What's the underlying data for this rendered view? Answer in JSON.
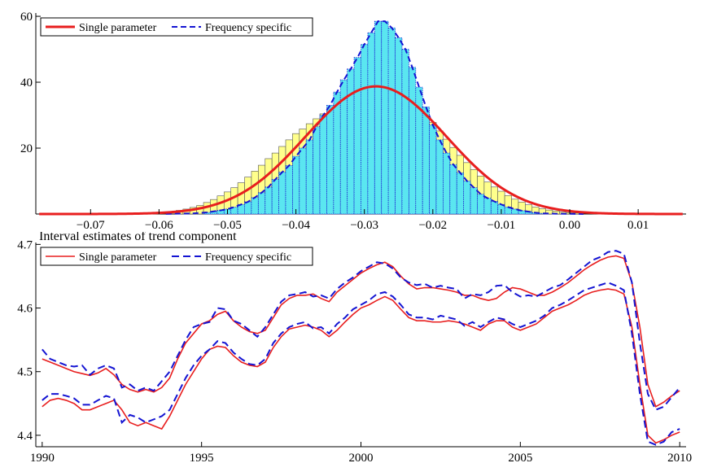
{
  "chart_data": [
    {
      "type": "histogram",
      "title": "",
      "xlabel": "",
      "ylabel": "",
      "xlim": [
        -0.078,
        0.017
      ],
      "ylim": [
        0,
        61
      ],
      "grid": false,
      "legend_placement": "top-left",
      "x_ticks": [
        -0.07,
        -0.06,
        -0.05,
        -0.04,
        -0.03,
        -0.02,
        -0.01,
        0.0,
        0.01
      ],
      "x_tick_labels": [
        "−0.07",
        "−0.06",
        "−0.05",
        "−0.04",
        "−0.03",
        "−0.02",
        "−0.01",
        "0.00",
        "0.01"
      ],
      "y_ticks": [
        20,
        40,
        60
      ],
      "y_tick_labels": [
        "20",
        "40",
        "60"
      ],
      "bin_width": 0.001,
      "series": [
        {
          "name": "Single parameter",
          "color": "#e81e1e",
          "line_style": "solid",
          "bar_color": "#ffff8c",
          "density_mean": -0.0283,
          "density_sd": 0.0103,
          "bins": {
            "x": [
              -0.057,
              -0.056,
              -0.055,
              -0.054,
              -0.053,
              -0.052,
              -0.051,
              -0.05,
              -0.049,
              -0.048,
              -0.047,
              -0.046,
              -0.045,
              -0.044,
              -0.043,
              -0.042,
              -0.041,
              -0.04,
              -0.039,
              -0.038,
              -0.037,
              -0.036,
              -0.035,
              -0.034,
              -0.033,
              -0.032,
              -0.031,
              -0.03,
              -0.029,
              -0.028,
              -0.027,
              -0.026,
              -0.025,
              -0.024,
              -0.023,
              -0.022,
              -0.021,
              -0.02,
              -0.019,
              -0.018,
              -0.017,
              -0.016,
              -0.015,
              -0.014,
              -0.013,
              -0.012,
              -0.011,
              -0.01,
              -0.009,
              -0.008,
              -0.007,
              -0.006,
              -0.005,
              -0.004,
              -0.003,
              -0.002,
              -0.001,
              0.0,
              0.001
            ],
            "values": [
              1.1,
              1.5,
              2.0,
              2.6,
              3.5,
              4.4,
              5.5,
              6.7,
              8.0,
              9.5,
              11.2,
              13.0,
              14.8,
              16.8,
              18.5,
              20.5,
              22.5,
              24.4,
              25.8,
              27.4,
              28.9,
              30.4,
              32.0,
              33.4,
              34.7,
              35.9,
              36.9,
              37.8,
              38.5,
              38.9,
              38.7,
              38.0,
              37.0,
              35.8,
              34.3,
              32.4,
              30.2,
              27.8,
              25.2,
              22.7,
              20.2,
              17.8,
              15.6,
              13.5,
              11.5,
              9.7,
              8.2,
              6.9,
              5.6,
              4.5,
              3.6,
              2.8,
              2.1,
              1.6,
              1.2,
              0.9,
              0.6,
              0.4,
              0.3
            ]
          }
        },
        {
          "name": "Frequency specific",
          "color": "#1414d2",
          "line_style": "dashed",
          "bar_color": "#5ae6f0",
          "bins": {
            "x": [
              -0.053,
              -0.052,
              -0.051,
              -0.05,
              -0.049,
              -0.048,
              -0.047,
              -0.046,
              -0.045,
              -0.044,
              -0.043,
              -0.042,
              -0.041,
              -0.04,
              -0.039,
              -0.038,
              -0.037,
              -0.036,
              -0.035,
              -0.034,
              -0.033,
              -0.032,
              -0.031,
              -0.03,
              -0.029,
              -0.028,
              -0.027,
              -0.026,
              -0.025,
              -0.024,
              -0.023,
              -0.022,
              -0.021,
              -0.02,
              -0.019,
              -0.018,
              -0.017,
              -0.016,
              -0.015,
              -0.014,
              -0.013,
              -0.012,
              -0.011,
              -0.01,
              -0.009,
              -0.008,
              -0.007,
              -0.006,
              -0.005,
              -0.004
            ],
            "values": [
              0.5,
              0.8,
              1.1,
              1.5,
              2.1,
              2.9,
              3.7,
              5.0,
              6.5,
              8.2,
              10.5,
              12.7,
              14.7,
              17.5,
              20.0,
              22.5,
              26.5,
              30.0,
              33.0,
              37.0,
              40.7,
              44.0,
              47.5,
              51.5,
              55.0,
              58.5,
              58.5,
              56.5,
              53.5,
              50.0,
              44.5,
              38.5,
              32.5,
              27.0,
              22.5,
              18.5,
              15.0,
              12.5,
              10.0,
              8.0,
              6.0,
              4.8,
              3.8,
              2.9,
              2.1,
              1.5,
              1.0,
              0.7,
              0.4,
              0.2
            ]
          }
        }
      ]
    },
    {
      "type": "line",
      "title": "Interval estimates of trend component",
      "xlabel": "",
      "ylabel": "",
      "xlim": [
        1989.8,
        2010.2
      ],
      "ylim": [
        4.382,
        4.703
      ],
      "grid": false,
      "legend_placement": "top-left",
      "x_ticks": [
        1990,
        1995,
        2000,
        2005,
        2010
      ],
      "x_tick_labels": [
        "1990",
        "1995",
        "2000",
        "2005",
        "2010"
      ],
      "y_ticks": [
        4.4,
        4.5,
        4.6,
        4.7
      ],
      "y_tick_labels": [
        "4.4",
        "4.5",
        "4.6",
        "4.7"
      ],
      "x": [
        1990.0,
        1990.25,
        1990.5,
        1990.75,
        1991.0,
        1991.25,
        1991.5,
        1991.75,
        1992.0,
        1992.25,
        1992.5,
        1992.75,
        1993.0,
        1993.25,
        1993.5,
        1993.75,
        1994.0,
        1994.25,
        1994.5,
        1994.75,
        1995.0,
        1995.25,
        1995.5,
        1995.75,
        1996.0,
        1996.25,
        1996.5,
        1996.75,
        1997.0,
        1997.25,
        1997.5,
        1997.75,
        1998.0,
        1998.25,
        1998.5,
        1998.75,
        1999.0,
        1999.25,
        1999.5,
        1999.75,
        2000.0,
        2000.25,
        2000.5,
        2000.75,
        2001.0,
        2001.25,
        2001.5,
        2001.75,
        2002.0,
        2002.25,
        2002.5,
        2002.75,
        2003.0,
        2003.25,
        2003.5,
        2003.75,
        2004.0,
        2004.25,
        2004.5,
        2004.75,
        2005.0,
        2005.25,
        2005.5,
        2005.75,
        2006.0,
        2006.25,
        2006.5,
        2006.75,
        2007.0,
        2007.25,
        2007.5,
        2007.75,
        2008.0,
        2008.25,
        2008.5,
        2008.75,
        2009.0,
        2009.25,
        2009.5,
        2009.75,
        2010.0
      ],
      "series": [
        {
          "name": "Single parameter",
          "color": "#e81e1e",
          "line_style": "solid",
          "legend_entry": true,
          "values": [
            4.52,
            4.515,
            4.51,
            4.505,
            4.5,
            4.497,
            4.494,
            4.498,
            4.505,
            4.495,
            4.48,
            4.472,
            4.468,
            4.472,
            4.468,
            4.475,
            4.49,
            4.52,
            4.545,
            4.56,
            4.575,
            4.58,
            4.59,
            4.595,
            4.58,
            4.57,
            4.563,
            4.56,
            4.565,
            4.585,
            4.605,
            4.615,
            4.62,
            4.62,
            4.622,
            4.615,
            4.61,
            4.625,
            4.635,
            4.645,
            4.655,
            4.662,
            4.668,
            4.672,
            4.665,
            4.65,
            4.638,
            4.63,
            4.632,
            4.632,
            4.63,
            4.628,
            4.625,
            4.62,
            4.62,
            4.615,
            4.612,
            4.615,
            4.625,
            4.632,
            4.63,
            4.625,
            4.62,
            4.62,
            4.625,
            4.632,
            4.64,
            4.65,
            4.66,
            4.668,
            4.675,
            4.68,
            4.682,
            4.678,
            4.64,
            4.57,
            4.48,
            4.445,
            4.452,
            4.462,
            4.47
          ]
        },
        {
          "name": "Single parameter",
          "color": "#e81e1e",
          "line_style": "solid",
          "legend_entry": false,
          "values": [
            4.445,
            4.455,
            4.458,
            4.455,
            4.45,
            4.44,
            4.44,
            4.445,
            4.45,
            4.455,
            4.44,
            4.42,
            4.415,
            4.42,
            4.415,
            4.41,
            4.43,
            4.455,
            4.48,
            4.5,
            4.52,
            4.535,
            4.54,
            4.538,
            4.525,
            4.515,
            4.51,
            4.508,
            4.515,
            4.538,
            4.555,
            4.567,
            4.57,
            4.573,
            4.57,
            4.565,
            4.555,
            4.565,
            4.578,
            4.59,
            4.6,
            4.605,
            4.612,
            4.618,
            4.612,
            4.598,
            4.585,
            4.58,
            4.58,
            4.578,
            4.578,
            4.58,
            4.578,
            4.575,
            4.57,
            4.565,
            4.575,
            4.58,
            4.58,
            4.57,
            4.565,
            4.57,
            4.575,
            4.585,
            4.595,
            4.6,
            4.605,
            4.612,
            4.62,
            4.625,
            4.628,
            4.63,
            4.628,
            4.622,
            4.57,
            4.48,
            4.4,
            4.388,
            4.393,
            4.4,
            4.405
          ]
        },
        {
          "name": "Frequency specific",
          "color": "#1414d2",
          "line_style": "dashed",
          "legend_entry": true,
          "values": [
            4.535,
            4.52,
            4.515,
            4.51,
            4.508,
            4.51,
            4.495,
            4.505,
            4.51,
            4.505,
            4.475,
            4.48,
            4.47,
            4.475,
            4.47,
            4.485,
            4.5,
            4.525,
            4.55,
            4.57,
            4.575,
            4.578,
            4.6,
            4.598,
            4.58,
            4.575,
            4.565,
            4.555,
            4.57,
            4.59,
            4.61,
            4.62,
            4.622,
            4.625,
            4.618,
            4.62,
            4.615,
            4.63,
            4.64,
            4.648,
            4.658,
            4.665,
            4.672,
            4.67,
            4.662,
            4.648,
            4.64,
            4.636,
            4.638,
            4.632,
            4.635,
            4.632,
            4.63,
            4.615,
            4.622,
            4.62,
            4.625,
            4.635,
            4.636,
            4.625,
            4.618,
            4.62,
            4.618,
            4.625,
            4.632,
            4.636,
            4.645,
            4.655,
            4.665,
            4.675,
            4.68,
            4.688,
            4.69,
            4.685,
            4.64,
            4.545,
            4.465,
            4.44,
            4.445,
            4.46,
            4.475
          ]
        },
        {
          "name": "Frequency specific",
          "color": "#1414d2",
          "line_style": "dashed",
          "legend_entry": false,
          "values": [
            4.455,
            4.465,
            4.465,
            4.462,
            4.458,
            4.448,
            4.448,
            4.455,
            4.462,
            4.458,
            4.42,
            4.432,
            4.428,
            4.42,
            4.425,
            4.43,
            4.44,
            4.465,
            4.49,
            4.51,
            4.525,
            4.535,
            4.548,
            4.545,
            4.53,
            4.52,
            4.512,
            4.51,
            4.52,
            4.545,
            4.56,
            4.57,
            4.575,
            4.578,
            4.568,
            4.57,
            4.56,
            4.575,
            4.585,
            4.598,
            4.605,
            4.612,
            4.622,
            4.625,
            4.618,
            4.605,
            4.59,
            4.585,
            4.585,
            4.582,
            4.588,
            4.585,
            4.582,
            4.572,
            4.578,
            4.57,
            4.578,
            4.585,
            4.582,
            4.575,
            4.57,
            4.575,
            4.58,
            4.588,
            4.6,
            4.605,
            4.612,
            4.62,
            4.628,
            4.632,
            4.636,
            4.64,
            4.635,
            4.628,
            4.56,
            4.465,
            4.39,
            4.385,
            4.39,
            4.405,
            4.41
          ]
        }
      ]
    }
  ]
}
